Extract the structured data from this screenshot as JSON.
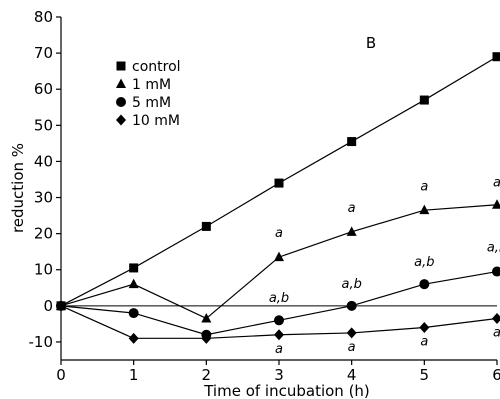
{
  "chart_data": {
    "type": "line",
    "panel_label": "B",
    "xlabel": "Time of incubation (h)",
    "ylabel": "reduction %",
    "xlim": [
      0,
      6
    ],
    "ylim": [
      -15,
      80
    ],
    "x_ticks": [
      0,
      1,
      2,
      3,
      4,
      5,
      6
    ],
    "y_ticks": [
      -10,
      0,
      10,
      20,
      30,
      40,
      50,
      60,
      70,
      80
    ],
    "grid": false,
    "zero_reference_line": true,
    "legend_position": "top-left",
    "x": [
      0,
      1,
      2,
      3,
      4,
      5,
      6
    ],
    "series": [
      {
        "name": "control",
        "marker": "square",
        "values": [
          0,
          10.5,
          22,
          34,
          45.5,
          57,
          69
        ]
      },
      {
        "name": "1 mM",
        "marker": "triangle",
        "values": [
          0,
          6,
          -3.5,
          13.5,
          20.5,
          26.5,
          28
        ]
      },
      {
        "name": "5 mM",
        "marker": "circle",
        "values": [
          0,
          -2,
          -8,
          -4,
          0,
          6,
          9.5
        ]
      },
      {
        "name": "10 mM",
        "marker": "diamond",
        "values": [
          0,
          -9,
          -9,
          -8,
          -7.5,
          -6,
          -3.5
        ]
      }
    ],
    "annotations": [
      {
        "text": "a",
        "x": 3,
        "y": 19
      },
      {
        "text": "a",
        "x": 4,
        "y": 26
      },
      {
        "text": "a",
        "x": 5,
        "y": 32
      },
      {
        "text": "a",
        "x": 6,
        "y": 33
      },
      {
        "text": "a,b",
        "x": 3,
        "y": 1
      },
      {
        "text": "a,b",
        "x": 4,
        "y": 5
      },
      {
        "text": "a,b",
        "x": 5,
        "y": 11
      },
      {
        "text": "a,b",
        "x": 6,
        "y": 15
      },
      {
        "text": "a",
        "x": 3,
        "y": -13
      },
      {
        "text": "a",
        "x": 4,
        "y": -12.5
      },
      {
        "text": "a",
        "x": 5,
        "y": -11
      },
      {
        "text": "a",
        "x": 6,
        "y": -8.5
      }
    ]
  }
}
